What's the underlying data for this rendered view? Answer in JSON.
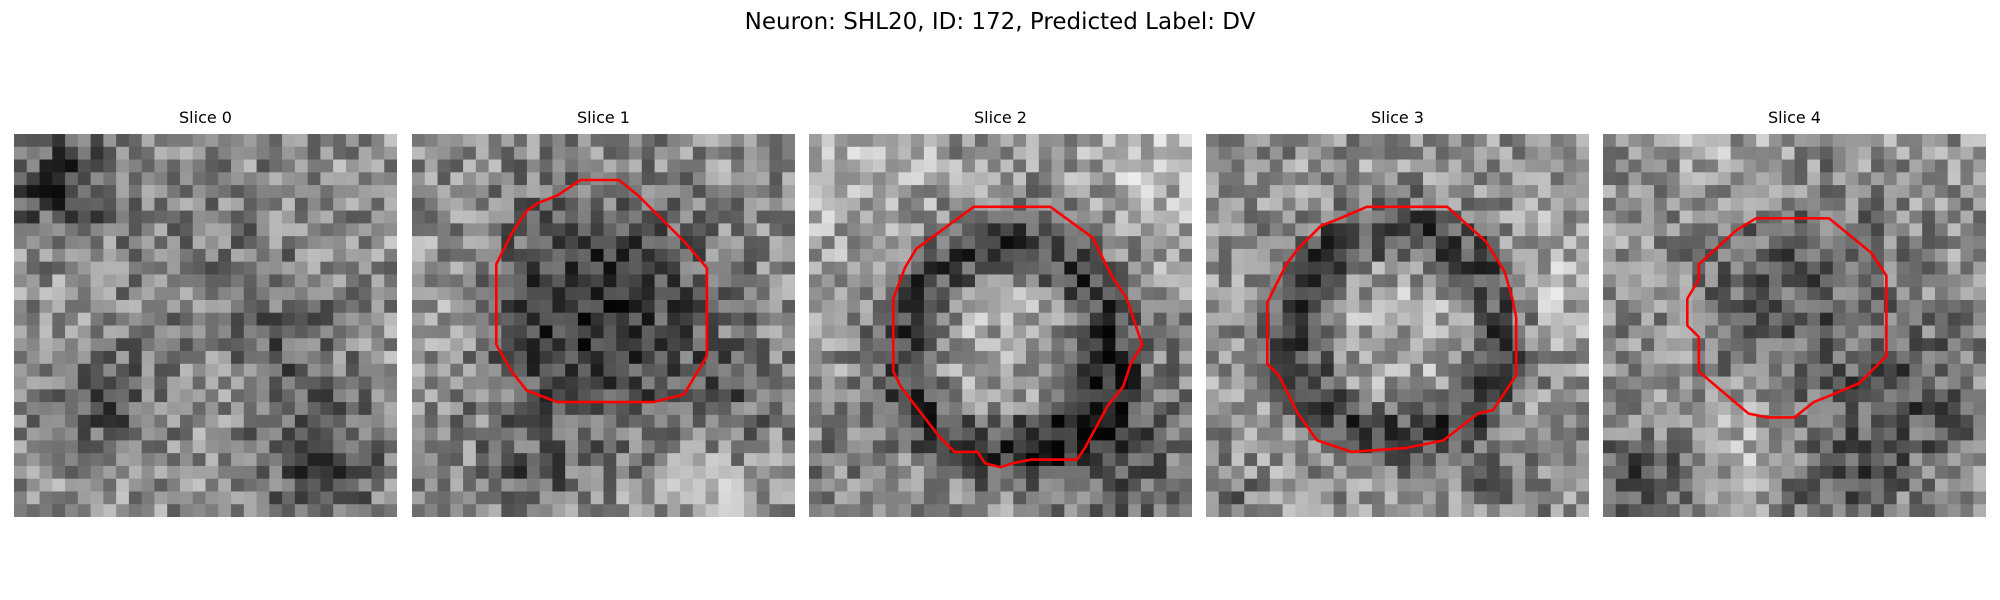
{
  "figure": {
    "title": "Neuron: SHL20, ID: 172, Predicted Label: DV"
  },
  "slices": [
    {
      "label": "Slice 0",
      "seed": 11,
      "has_contour": false,
      "dark_blobs": [
        [
          0.12,
          0.13,
          0.1,
          1.0
        ],
        [
          0.22,
          0.7,
          0.11,
          0.8
        ],
        [
          0.8,
          0.85,
          0.13,
          0.8
        ],
        [
          0.7,
          0.55,
          0.1,
          0.5
        ],
        [
          0.55,
          0.3,
          0.2,
          0.3
        ]
      ],
      "contour": null,
      "center": null
    },
    {
      "label": "Slice 1",
      "seed": 23,
      "has_contour": true,
      "dark_blobs": [
        [
          0.47,
          0.48,
          0.23,
          1.15
        ],
        [
          0.3,
          0.9,
          0.08,
          0.5
        ],
        [
          0.85,
          0.7,
          0.1,
          0.4
        ]
      ],
      "bright_blobs": [
        [
          0.1,
          0.45,
          0.12,
          0.4
        ],
        [
          0.75,
          0.9,
          0.1,
          0.4
        ]
      ],
      "center": [
        0.48,
        0.45
      ],
      "contour": [
        [
          0.44,
          0.12
        ],
        [
          0.54,
          0.12
        ],
        [
          0.59,
          0.16
        ],
        [
          0.71,
          0.28
        ],
        [
          0.77,
          0.35
        ],
        [
          0.77,
          0.58
        ],
        [
          0.71,
          0.68
        ],
        [
          0.63,
          0.7
        ],
        [
          0.38,
          0.7
        ],
        [
          0.3,
          0.67
        ],
        [
          0.26,
          0.62
        ],
        [
          0.22,
          0.55
        ],
        [
          0.22,
          0.34
        ],
        [
          0.26,
          0.26
        ],
        [
          0.3,
          0.2
        ],
        [
          0.33,
          0.18
        ],
        [
          0.38,
          0.16
        ]
      ]
    },
    {
      "label": "Slice 2",
      "seed": 37,
      "has_contour": true,
      "dark_blobs": [
        [
          0.8,
          0.82,
          0.15,
          0.8
        ],
        [
          0.05,
          0.8,
          0.08,
          0.3
        ]
      ],
      "bright_blobs": [
        [
          0.1,
          0.05,
          0.15,
          0.5
        ],
        [
          0.9,
          0.1,
          0.12,
          0.4
        ]
      ],
      "center": [
        0.51,
        0.56
      ],
      "ring": [
        0.27,
        0.11
      ],
      "contour": [
        [
          0.43,
          0.19
        ],
        [
          0.63,
          0.19
        ],
        [
          0.74,
          0.27
        ],
        [
          0.79,
          0.37
        ],
        [
          0.83,
          0.43
        ],
        [
          0.87,
          0.55
        ],
        [
          0.84,
          0.6
        ],
        [
          0.82,
          0.66
        ],
        [
          0.78,
          0.71
        ],
        [
          0.72,
          0.82
        ],
        [
          0.7,
          0.85
        ],
        [
          0.58,
          0.85
        ],
        [
          0.53,
          0.86
        ],
        [
          0.5,
          0.87
        ],
        [
          0.46,
          0.86
        ],
        [
          0.44,
          0.83
        ],
        [
          0.38,
          0.83
        ],
        [
          0.34,
          0.79
        ],
        [
          0.24,
          0.66
        ],
        [
          0.22,
          0.62
        ],
        [
          0.22,
          0.43
        ],
        [
          0.25,
          0.35
        ],
        [
          0.28,
          0.3
        ]
      ]
    },
    {
      "label": "Slice 3",
      "seed": 53,
      "has_contour": true,
      "dark_blobs": [
        [
          0.75,
          0.9,
          0.08,
          0.4
        ],
        [
          0.05,
          0.95,
          0.06,
          0.4
        ]
      ],
      "bright_blobs": [
        [
          0.9,
          0.4,
          0.1,
          0.4
        ]
      ],
      "center": [
        0.5,
        0.52
      ],
      "ring": [
        0.27,
        0.1
      ],
      "contour": [
        [
          0.35,
          0.22
        ],
        [
          0.42,
          0.19
        ],
        [
          0.63,
          0.19
        ],
        [
          0.73,
          0.28
        ],
        [
          0.78,
          0.36
        ],
        [
          0.8,
          0.43
        ],
        [
          0.81,
          0.48
        ],
        [
          0.81,
          0.63
        ],
        [
          0.75,
          0.72
        ],
        [
          0.71,
          0.73
        ],
        [
          0.62,
          0.8
        ],
        [
          0.52,
          0.82
        ],
        [
          0.38,
          0.83
        ],
        [
          0.29,
          0.8
        ],
        [
          0.24,
          0.73
        ],
        [
          0.19,
          0.63
        ],
        [
          0.16,
          0.6
        ],
        [
          0.16,
          0.44
        ],
        [
          0.21,
          0.34
        ],
        [
          0.24,
          0.3
        ],
        [
          0.3,
          0.24
        ]
      ]
    },
    {
      "label": "Slice 4",
      "seed": 71,
      "has_contour": true,
      "dark_blobs": [
        [
          0.5,
          0.4,
          0.2,
          0.6
        ],
        [
          0.8,
          0.7,
          0.15,
          0.6
        ],
        [
          0.1,
          0.92,
          0.12,
          0.8
        ],
        [
          0.6,
          0.92,
          0.12,
          0.6
        ]
      ],
      "bright_blobs": [
        [
          0.3,
          0.05,
          0.12,
          0.3
        ],
        [
          0.35,
          0.85,
          0.12,
          0.5
        ]
      ],
      "center": [
        0.5,
        0.48
      ],
      "contour": [
        [
          0.35,
          0.25
        ],
        [
          0.4,
          0.22
        ],
        [
          0.59,
          0.22
        ],
        [
          0.7,
          0.31
        ],
        [
          0.74,
          0.37
        ],
        [
          0.74,
          0.58
        ],
        [
          0.67,
          0.65
        ],
        [
          0.6,
          0.68
        ],
        [
          0.55,
          0.7
        ],
        [
          0.5,
          0.74
        ],
        [
          0.43,
          0.74
        ],
        [
          0.38,
          0.73
        ],
        [
          0.25,
          0.62
        ],
        [
          0.25,
          0.53
        ],
        [
          0.22,
          0.5
        ],
        [
          0.22,
          0.43
        ],
        [
          0.25,
          0.38
        ],
        [
          0.25,
          0.34
        ]
      ]
    }
  ],
  "colors": {
    "contour": "#ff0000",
    "background": "#ffffff"
  }
}
